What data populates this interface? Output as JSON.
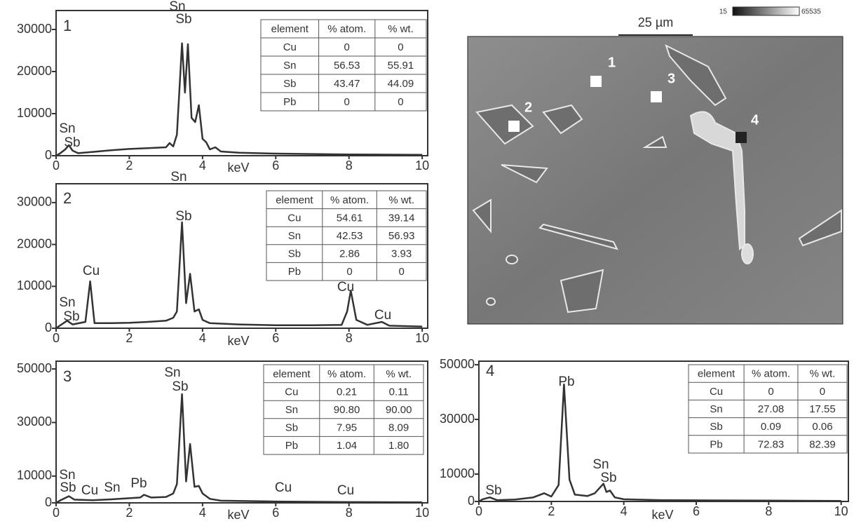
{
  "chart_data": [
    {
      "type": "line",
      "label": "1",
      "xlabel": "keV",
      "color": "#333333",
      "x": [
        0,
        0.1,
        0.25,
        0.35,
        0.45,
        0.6,
        1,
        1.5,
        2,
        2.5,
        3,
        3.1,
        3.2,
        3.3,
        3.44,
        3.52,
        3.6,
        3.7,
        3.8,
        3.9,
        4.0,
        4.1,
        4.2,
        4.35,
        4.5,
        5,
        6,
        8,
        10
      ],
      "values": [
        0,
        500,
        1500,
        2500,
        1200,
        600,
        900,
        1300,
        1600,
        1800,
        2000,
        3000,
        2200,
        5000,
        26700,
        15000,
        26500,
        9000,
        8000,
        12000,
        4000,
        3200,
        1500,
        2000,
        1000,
        700,
        500,
        300,
        200
      ],
      "xlim": [
        0,
        10.15
      ],
      "ylim": [
        0,
        34500
      ],
      "xticks": [
        0,
        2,
        4,
        6,
        8,
        10
      ],
      "yticks": [
        0,
        10000,
        20000,
        30000
      ],
      "annotations": [
        "Sn",
        "Sb",
        "Sn",
        "Sb"
      ],
      "table": {
        "header": [
          "element",
          "% atom.",
          "% wt."
        ],
        "rows": [
          [
            "Cu",
            "0",
            "0"
          ],
          [
            "Sn",
            "56.53",
            "55.91"
          ],
          [
            "Sb",
            "43.47",
            "44.09"
          ],
          [
            "Pb",
            "0",
            "0"
          ]
        ]
      }
    },
    {
      "type": "line",
      "label": "2",
      "xlabel": "keV",
      "color": "#333333",
      "x": [
        0,
        0.1,
        0.3,
        0.45,
        0.8,
        0.93,
        1.05,
        1.5,
        2,
        2.5,
        3,
        3.2,
        3.3,
        3.44,
        3.55,
        3.66,
        3.78,
        3.9,
        4.0,
        4.2,
        5,
        6,
        7,
        7.8,
        7.95,
        8.05,
        8.2,
        8.5,
        8.9,
        9.1,
        10
      ],
      "values": [
        0,
        600,
        1800,
        900,
        1500,
        11200,
        1200,
        1200,
        1300,
        1500,
        1800,
        2500,
        4000,
        25300,
        6000,
        13000,
        4000,
        4500,
        2000,
        1200,
        900,
        700,
        700,
        800,
        4000,
        9000,
        2000,
        800,
        1500,
        600,
        400
      ],
      "xlim": [
        0,
        10.15
      ],
      "ylim": [
        0,
        34500
      ],
      "xticks": [
        0,
        2,
        4,
        6,
        8,
        10
      ],
      "yticks": [
        0,
        10000,
        20000,
        30000
      ],
      "annotations": [
        "Sn",
        "Sb",
        "Cu",
        "Sn",
        "Sb",
        "Cu",
        "Cu"
      ],
      "table": {
        "header": [
          "element",
          "% atom.",
          "% wt."
        ],
        "rows": [
          [
            "Cu",
            "54.61",
            "39.14"
          ],
          [
            "Sn",
            "42.53",
            "56.93"
          ],
          [
            "Sb",
            "2.86",
            "3.93"
          ],
          [
            "Pb",
            "0",
            "0"
          ]
        ]
      }
    },
    {
      "type": "line",
      "label": "3",
      "xlabel": "keV",
      "color": "#333333",
      "x": [
        0,
        0.1,
        0.35,
        0.5,
        1,
        1.5,
        2.3,
        2.4,
        2.6,
        3,
        3.2,
        3.3,
        3.44,
        3.55,
        3.66,
        3.78,
        3.9,
        4.0,
        4.2,
        4.5,
        6,
        8,
        10
      ],
      "values": [
        0,
        800,
        2500,
        1200,
        1000,
        1300,
        2000,
        3000,
        2000,
        2200,
        3500,
        7000,
        40600,
        8000,
        22000,
        6000,
        6300,
        3500,
        1500,
        800,
        500,
        300,
        200
      ],
      "xlim": [
        0,
        10.15
      ],
      "ylim": [
        0,
        52900
      ],
      "xticks": [
        0,
        2,
        4,
        6,
        8,
        10
      ],
      "yticks": [
        0,
        10000,
        30000,
        50000
      ],
      "annotations": [
        "Sn",
        "Sb",
        "Sn",
        "Sb",
        "Cu",
        "Sn",
        "Pb",
        "Cu",
        "Cu"
      ],
      "table": {
        "header": [
          "element",
          "% atom.",
          "% wt."
        ],
        "rows": [
          [
            "Cu",
            "0.21",
            "0.11"
          ],
          [
            "Sn",
            "90.80",
            "90.00"
          ],
          [
            "Sb",
            "7.95",
            "8.09"
          ],
          [
            "Pb",
            "1.04",
            "1.80"
          ]
        ]
      }
    },
    {
      "type": "line",
      "label": "4",
      "xlabel": "keV",
      "color": "#333333",
      "x": [
        0,
        0.1,
        0.3,
        0.5,
        1,
        1.5,
        1.8,
        2.0,
        2.2,
        2.35,
        2.5,
        2.65,
        3,
        3.2,
        3.44,
        3.52,
        3.62,
        3.75,
        4,
        5,
        6,
        8,
        10
      ],
      "values": [
        0,
        800,
        1500,
        500,
        700,
        1500,
        3000,
        1800,
        6000,
        42800,
        8000,
        2500,
        2000,
        3000,
        6500,
        3500,
        4000,
        1500,
        800,
        500,
        400,
        300,
        200
      ],
      "xlim": [
        0,
        10.2
      ],
      "ylim": [
        0,
        51300
      ],
      "xticks": [
        0,
        2,
        4,
        6,
        8,
        10
      ],
      "yticks": [
        0,
        10000,
        30000,
        50000
      ],
      "annotations": [
        "Pb",
        "Sn",
        "Sb",
        "Sb"
      ],
      "table": {
        "header": [
          "element",
          "% atom.",
          "% wt."
        ],
        "rows": [
          [
            "Cu",
            "0",
            "0"
          ],
          [
            "Sn",
            "27.08",
            "17.55"
          ],
          [
            "Sb",
            "0.09",
            "0.06"
          ],
          [
            "Pb",
            "72.83",
            "82.39"
          ]
        ]
      }
    }
  ],
  "image": {
    "scale_bar": "25 µm",
    "colorbar_min": "15",
    "colorbar_max": "65535",
    "points": [
      "1",
      "2",
      "3",
      "4"
    ]
  }
}
